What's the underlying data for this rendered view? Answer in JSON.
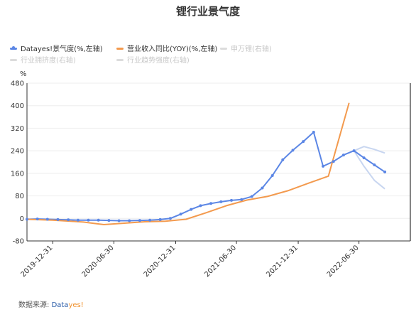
{
  "chart_data": {
    "type": "line",
    "title": "锂行业景气度",
    "y_unit": "%",
    "ylim": [
      -80,
      480
    ],
    "y_ticks": [
      -80,
      0,
      80,
      160,
      240,
      320,
      400,
      480
    ],
    "x_ticks": [
      "2019-12-31",
      "2020-06-30",
      "2020-12-31",
      "2021-06-30",
      "2021-12-31",
      "2022-06-30"
    ],
    "xlim": [
      "2019-10-15",
      "2022-11-30"
    ],
    "legend_position": "top-left",
    "grid": true,
    "series": [
      {
        "name": "Datayes!景气度(%,左轴)",
        "color": "#5b86e5",
        "visible": true,
        "markers": true,
        "points": [
          [
            "2019-10-15",
            -3
          ],
          [
            "2019-11-15",
            -2
          ],
          [
            "2019-12-15",
            -3
          ],
          [
            "2020-01-15",
            -4
          ],
          [
            "2020-02-15",
            -5
          ],
          [
            "2020-03-15",
            -6
          ],
          [
            "2020-04-15",
            -6
          ],
          [
            "2020-05-15",
            -6
          ],
          [
            "2020-06-15",
            -7
          ],
          [
            "2020-07-15",
            -8
          ],
          [
            "2020-08-15",
            -8
          ],
          [
            "2020-09-15",
            -7
          ],
          [
            "2020-10-15",
            -6
          ],
          [
            "2020-11-15",
            -4
          ],
          [
            "2020-12-15",
            0
          ],
          [
            "2021-01-15",
            15
          ],
          [
            "2021-02-15",
            32
          ],
          [
            "2021-03-15",
            45
          ],
          [
            "2021-04-15",
            53
          ],
          [
            "2021-05-15",
            59
          ],
          [
            "2021-06-15",
            64
          ],
          [
            "2021-07-15",
            67
          ],
          [
            "2021-08-15",
            78
          ],
          [
            "2021-09-15",
            108
          ],
          [
            "2021-10-15",
            152
          ],
          [
            "2021-11-15",
            208
          ],
          [
            "2021-12-15",
            242
          ],
          [
            "2022-01-15",
            273
          ],
          [
            "2022-02-15",
            306
          ],
          [
            "2022-03-15",
            185
          ],
          [
            "2022-04-15",
            202
          ],
          [
            "2022-05-15",
            225
          ],
          [
            "2022-06-15",
            240
          ],
          [
            "2022-07-15",
            215
          ],
          [
            "2022-08-15",
            190
          ],
          [
            "2022-09-15",
            165
          ]
        ]
      },
      {
        "name": "营业收入同比(YOY)(%,左轴)",
        "color": "#f39a4e",
        "visible": true,
        "markers": false,
        "points": [
          [
            "2019-10-15",
            -3
          ],
          [
            "2019-12-31",
            -6
          ],
          [
            "2020-03-31",
            -13
          ],
          [
            "2020-05-31",
            -22
          ],
          [
            "2020-07-31",
            -17
          ],
          [
            "2020-09-30",
            -12
          ],
          [
            "2020-11-30",
            -10
          ],
          [
            "2021-01-31",
            -3
          ],
          [
            "2021-03-31",
            20
          ],
          [
            "2021-05-31",
            45
          ],
          [
            "2021-07-31",
            65
          ],
          [
            "2021-09-30",
            78
          ],
          [
            "2021-11-30",
            98
          ],
          [
            "2022-01-31",
            125
          ],
          [
            "2022-03-31",
            150
          ],
          [
            "2022-05-31",
            408
          ]
        ]
      },
      {
        "name": "申万锂(右轴)",
        "color": "#c8d6f0",
        "visible": false
      },
      {
        "name": "行业拥挤度(右轴)",
        "color": "#c8d6f0",
        "visible": false
      },
      {
        "name": "行业趋势强度(右轴)",
        "color": "#c8d6f0",
        "visible": false,
        "faded_lines": [
          [
            [
              "2022-06-15",
              240
            ],
            [
              "2022-07-15",
              255
            ],
            [
              "2022-08-15",
              245
            ],
            [
              "2022-09-15",
              232
            ]
          ],
          [
            [
              "2022-06-15",
              240
            ],
            [
              "2022-07-15",
              185
            ],
            [
              "2022-08-15",
              135
            ],
            [
              "2022-09-15",
              105
            ]
          ]
        ]
      }
    ]
  },
  "source": {
    "label": "数据来源:",
    "brand_1": "Data",
    "brand_2": "yes!"
  }
}
